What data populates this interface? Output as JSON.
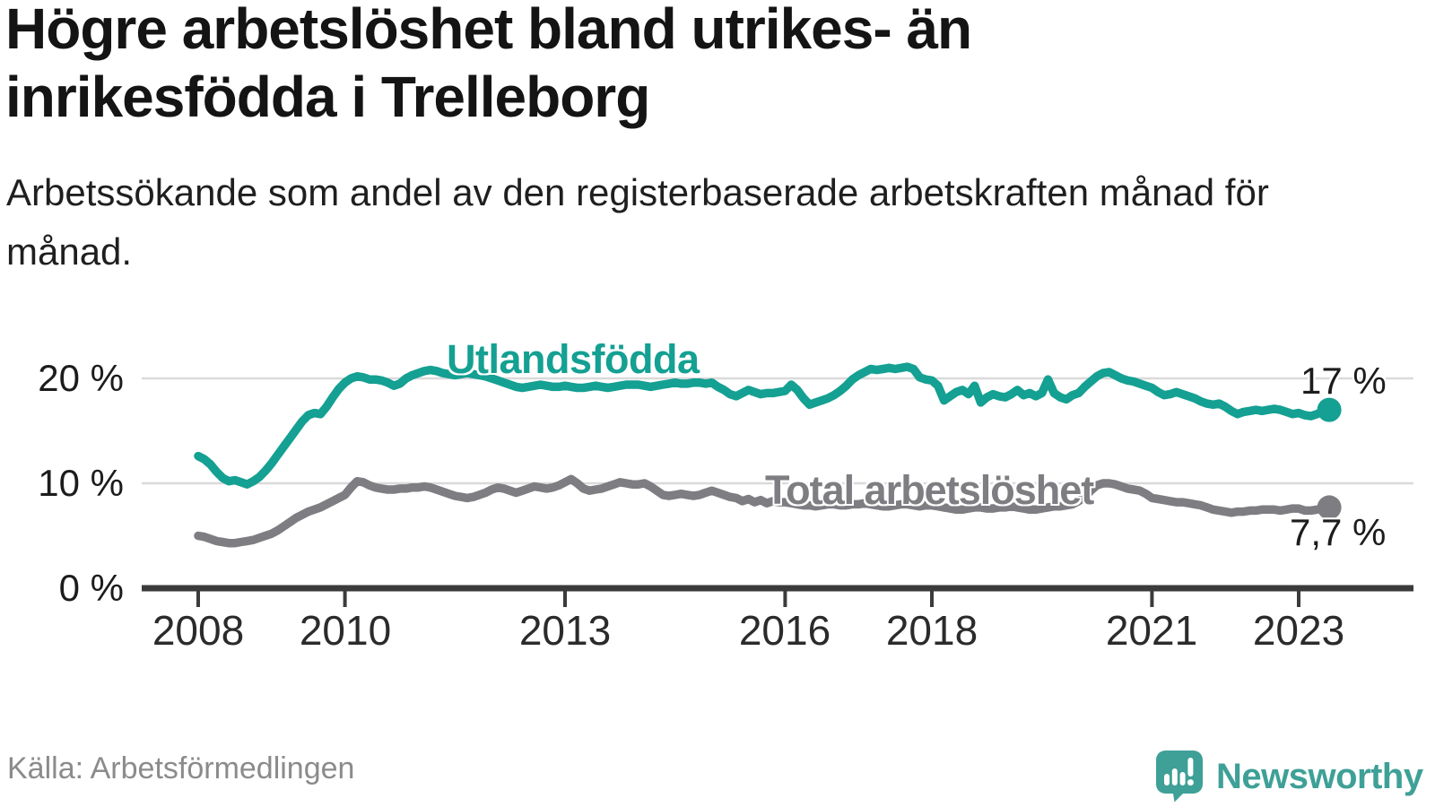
{
  "title": "Högre arbetslöshet bland utrikes- än inrikesfödda i Trelleborg",
  "subtitle": "Arbetssökande som andel av den registerbaserade arbetskraften månad för månad.",
  "source": "Källa: Arbetsförmedlingen",
  "branding": {
    "name": "Newsworthy",
    "logo_icon": "speech-bubble-bar-chart-exclamation",
    "color": "#3ea097"
  },
  "colors": {
    "foreign_born_line": "#14a092",
    "total_line": "#7d7d82",
    "axis": "#3b3b3b",
    "gridline": "#dadada",
    "title_text": "#141414",
    "source_text": "#8b8b8b"
  },
  "chart_data": {
    "type": "line",
    "title": "Högre arbetslöshet bland utrikes- än inrikesfödda i Trelleborg",
    "xlabel": "",
    "ylabel": "Arbetssökande som andel av den registerbaserade arbetskraften",
    "x_unit": "year-month, monthly from 2008-01 to 2023-06",
    "x_start_year": 2008,
    "x_months_per_step": 1,
    "ylim": [
      0,
      23
    ],
    "grid": "horizontal",
    "legend_position": "inline-labels",
    "x_tick_years": [
      2008,
      2010,
      2013,
      2016,
      2018,
      2021,
      2023
    ],
    "x_tick_labels": [
      "2008",
      "2010",
      "2013",
      "2016",
      "2018",
      "2021",
      "2023"
    ],
    "y_ticks": [
      {
        "value": 0,
        "label": "0 %"
      },
      {
        "value": 10,
        "label": "10 %"
      },
      {
        "value": 20,
        "label": "20 %"
      }
    ],
    "series": [
      {
        "name": "Utlandsfödda",
        "color": "#14a092",
        "end_label": "17 %",
        "end_value": 17.0,
        "values": [
          12.6,
          12.3,
          11.8,
          11.1,
          10.5,
          10.2,
          10.3,
          10.1,
          9.9,
          10.2,
          10.6,
          11.2,
          11.9,
          12.7,
          13.5,
          14.3,
          15.1,
          15.9,
          16.5,
          16.7,
          16.6,
          17.3,
          18.2,
          19.0,
          19.6,
          20.0,
          20.2,
          20.1,
          19.9,
          19.9,
          19.8,
          19.6,
          19.3,
          19.5,
          20.0,
          20.3,
          20.5,
          20.7,
          20.8,
          20.7,
          20.5,
          20.4,
          20.3,
          20.4,
          20.5,
          20.4,
          20.3,
          20.2,
          20.0,
          19.8,
          19.6,
          19.4,
          19.2,
          19.1,
          19.2,
          19.3,
          19.4,
          19.3,
          19.2,
          19.2,
          19.3,
          19.2,
          19.1,
          19.1,
          19.2,
          19.3,
          19.2,
          19.1,
          19.2,
          19.3,
          19.4,
          19.4,
          19.4,
          19.3,
          19.2,
          19.3,
          19.4,
          19.5,
          19.6,
          19.5,
          19.5,
          19.6,
          19.6,
          19.5,
          19.6,
          19.2,
          18.9,
          18.5,
          18.3,
          18.6,
          18.9,
          18.7,
          18.5,
          18.6,
          18.6,
          18.7,
          18.8,
          19.4,
          18.9,
          18.1,
          17.5,
          17.7,
          17.9,
          18.1,
          18.4,
          18.8,
          19.3,
          19.9,
          20.3,
          20.6,
          20.9,
          20.8,
          20.9,
          21.0,
          20.9,
          21.0,
          21.1,
          20.9,
          20.1,
          19.9,
          19.8,
          19.3,
          17.9,
          18.3,
          18.7,
          18.9,
          18.5,
          19.3,
          17.7,
          18.2,
          18.5,
          18.3,
          18.2,
          18.5,
          18.9,
          18.4,
          18.6,
          18.3,
          18.6,
          19.9,
          18.6,
          18.2,
          18.0,
          18.4,
          18.6,
          19.2,
          19.7,
          20.2,
          20.5,
          20.6,
          20.3,
          20.0,
          19.8,
          19.7,
          19.5,
          19.3,
          19.1,
          18.7,
          18.4,
          18.5,
          18.7,
          18.5,
          18.3,
          18.1,
          17.8,
          17.6,
          17.5,
          17.6,
          17.3,
          16.9,
          16.6,
          16.8,
          16.9,
          17.0,
          16.9,
          17.0,
          17.1,
          17.0,
          16.8,
          16.6,
          16.7,
          16.5,
          16.4,
          16.6,
          16.9,
          17.0
        ]
      },
      {
        "name": "Total arbetslöshet",
        "color": "#7d7d82",
        "end_label": "7,7 %",
        "end_value": 7.7,
        "values": [
          5.0,
          4.9,
          4.7,
          4.5,
          4.4,
          4.3,
          4.3,
          4.4,
          4.5,
          4.6,
          4.8,
          5.0,
          5.2,
          5.5,
          5.9,
          6.3,
          6.7,
          7.0,
          7.3,
          7.5,
          7.7,
          8.0,
          8.3,
          8.6,
          8.9,
          9.6,
          10.2,
          10.1,
          9.8,
          9.6,
          9.5,
          9.4,
          9.4,
          9.5,
          9.5,
          9.6,
          9.6,
          9.7,
          9.6,
          9.4,
          9.2,
          9.0,
          8.8,
          8.7,
          8.6,
          8.7,
          8.9,
          9.1,
          9.4,
          9.6,
          9.5,
          9.3,
          9.1,
          9.3,
          9.5,
          9.7,
          9.6,
          9.5,
          9.6,
          9.8,
          10.1,
          10.4,
          10.0,
          9.5,
          9.3,
          9.4,
          9.5,
          9.7,
          9.9,
          10.1,
          10.0,
          9.9,
          9.9,
          10.0,
          9.7,
          9.3,
          8.9,
          8.8,
          8.9,
          9.0,
          8.9,
          8.8,
          8.9,
          9.1,
          9.3,
          9.1,
          8.9,
          8.7,
          8.6,
          8.3,
          8.5,
          8.2,
          8.4,
          8.1,
          8.3,
          8.2,
          8.2,
          8.1,
          8.0,
          7.9,
          7.9,
          7.8,
          7.9,
          8.0,
          8.0,
          7.9,
          7.9,
          8.0,
          8.0,
          8.1,
          8.0,
          7.9,
          7.8,
          7.8,
          7.9,
          8.0,
          8.0,
          7.9,
          7.8,
          7.9,
          7.9,
          7.8,
          7.7,
          7.6,
          7.5,
          7.5,
          7.6,
          7.7,
          7.7,
          7.6,
          7.6,
          7.7,
          7.7,
          7.8,
          7.7,
          7.6,
          7.5,
          7.5,
          7.6,
          7.7,
          7.8,
          7.8,
          7.9,
          8.0,
          8.3,
          8.7,
          9.3,
          9.8,
          10.0,
          10.0,
          9.9,
          9.7,
          9.5,
          9.4,
          9.3,
          9.0,
          8.6,
          8.5,
          8.4,
          8.3,
          8.2,
          8.2,
          8.1,
          8.0,
          7.9,
          7.7,
          7.5,
          7.4,
          7.3,
          7.2,
          7.3,
          7.3,
          7.4,
          7.4,
          7.5,
          7.5,
          7.5,
          7.4,
          7.5,
          7.6,
          7.6,
          7.4,
          7.4,
          7.5,
          7.6,
          7.7
        ]
      }
    ]
  }
}
